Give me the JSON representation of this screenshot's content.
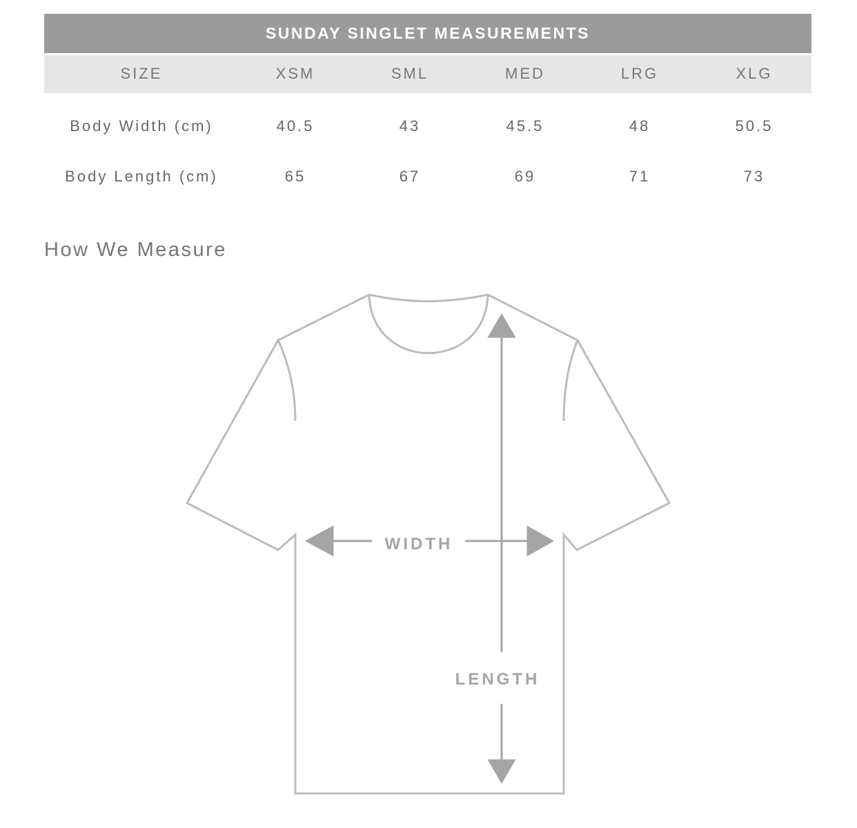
{
  "table": {
    "title": "SUNDAY SINGLET MEASUREMENTS",
    "headers": [
      "SIZE",
      "XSM",
      "SML",
      "MED",
      "LRG",
      "XLG"
    ],
    "rows": [
      {
        "label": "Body Width (cm)",
        "values": [
          "40.5",
          "43",
          "45.5",
          "48",
          "50.5"
        ]
      },
      {
        "label": "Body Length (cm)",
        "values": [
          "65",
          "67",
          "69",
          "71",
          "73"
        ]
      }
    ]
  },
  "section_title": "How We Measure",
  "diagram": {
    "width_label": "WIDTH",
    "length_label": "LENGTH",
    "outline_color": "#bcbcbc",
    "arrow_color": "#a5a5a7"
  }
}
